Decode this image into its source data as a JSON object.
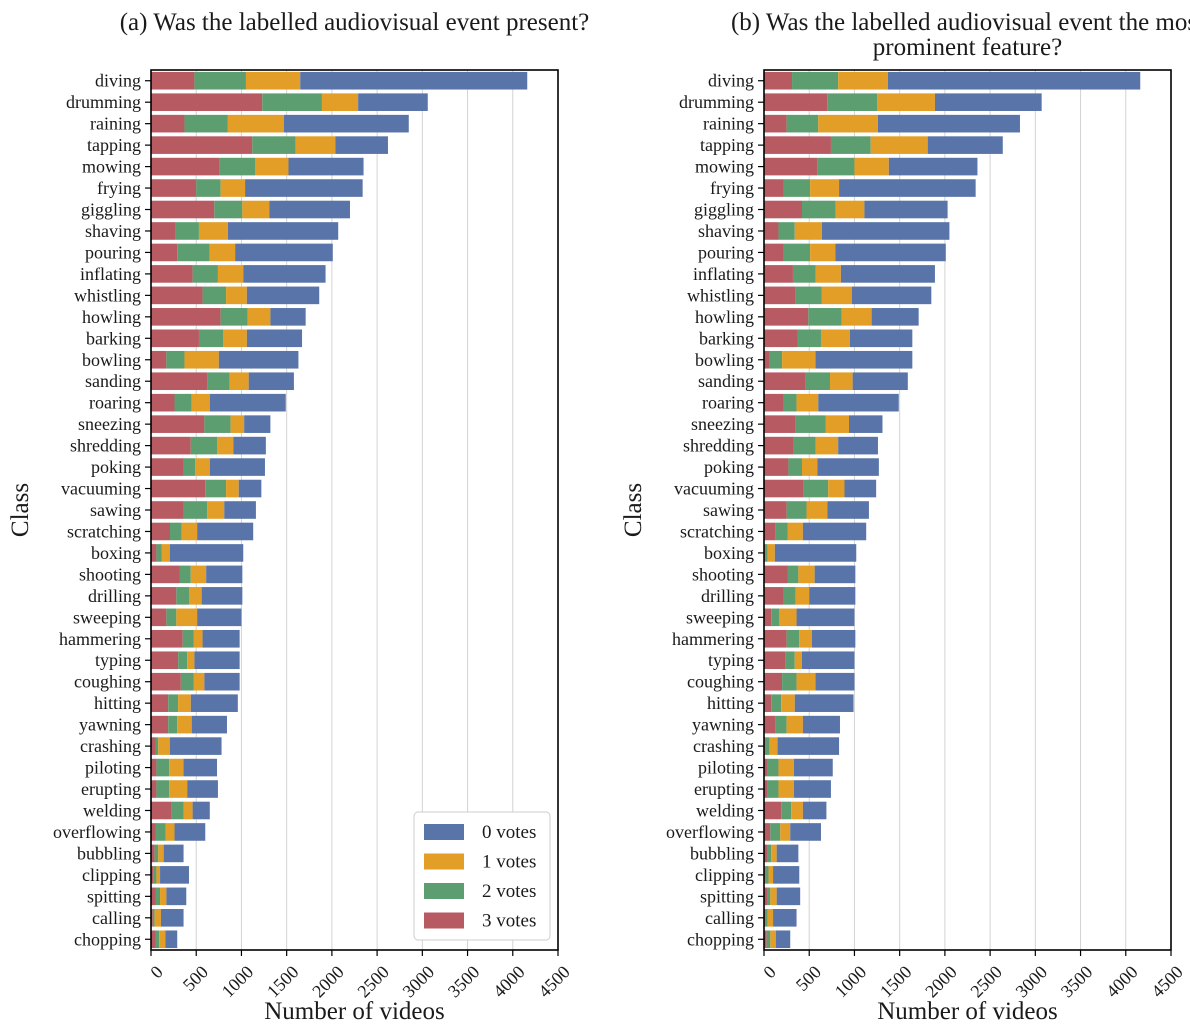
{
  "classes": [
    "diving",
    "drumming",
    "raining",
    "tapping",
    "mowing",
    "frying",
    "giggling",
    "shaving",
    "pouring",
    "inflating",
    "whistling",
    "howling",
    "barking",
    "bowling",
    "sanding",
    "roaring",
    "sneezing",
    "shredding",
    "poking",
    "vacuuming",
    "sawing",
    "scratching",
    "boxing",
    "shooting",
    "drilling",
    "sweeping",
    "hammering",
    "typing",
    "coughing",
    "hitting",
    "yawning",
    "crashing",
    "piloting",
    "erupting",
    "welding",
    "overflowing",
    "bubbling",
    "clipping",
    "spitting",
    "calling",
    "chopping"
  ],
  "x_ticks": [
    "0",
    "500",
    "1000",
    "1500",
    "2000",
    "2500",
    "3000",
    "3500",
    "4000",
    "4500"
  ],
  "legend": [
    {
      "label": "0 votes",
      "color": "#5874a8"
    },
    {
      "label": "1 votes",
      "color": "#e29e26"
    },
    {
      "label": "2 votes",
      "color": "#5d9e71"
    },
    {
      "label": "3 votes",
      "color": "#b85a62"
    }
  ],
  "chart_data": [
    {
      "type": "bar",
      "orientation": "horizontal",
      "stacked": true,
      "title": "(a) Was the labelled audiovisual event present?",
      "xlabel": "Number of videos",
      "ylabel": "Class",
      "xlim": [
        0,
        4500
      ],
      "grid": "vertical",
      "legend_position": "bottom-right",
      "series": [
        {
          "name": "3 votes",
          "color": "#b85a62",
          "values": [
            480,
            1230,
            370,
            1120,
            760,
            500,
            700,
            270,
            290,
            460,
            570,
            770,
            530,
            170,
            620,
            260,
            590,
            440,
            360,
            600,
            360,
            210,
            60,
            320,
            280,
            170,
            350,
            300,
            330,
            190,
            190,
            50,
            60,
            60,
            230,
            50,
            40,
            30,
            50,
            20,
            50
          ]
        },
        {
          "name": "2 votes",
          "color": "#5d9e71",
          "values": [
            570,
            660,
            480,
            480,
            390,
            270,
            310,
            260,
            360,
            280,
            260,
            300,
            270,
            200,
            250,
            190,
            290,
            290,
            130,
            230,
            260,
            130,
            60,
            120,
            140,
            110,
            120,
            100,
            140,
            110,
            100,
            30,
            140,
            140,
            130,
            110,
            40,
            30,
            50,
            20,
            40
          ]
        },
        {
          "name": "1 votes",
          "color": "#e29e26",
          "values": [
            600,
            400,
            620,
            440,
            370,
            270,
            300,
            320,
            280,
            280,
            230,
            250,
            260,
            380,
            210,
            200,
            150,
            180,
            160,
            140,
            190,
            170,
            90,
            170,
            140,
            230,
            100,
            80,
            120,
            140,
            160,
            130,
            160,
            200,
            100,
            100,
            60,
            40,
            70,
            70,
            70
          ]
        },
        {
          "name": "0 votes",
          "color": "#5874a8",
          "values": [
            2510,
            770,
            1380,
            580,
            830,
            1300,
            890,
            1220,
            1080,
            910,
            800,
            390,
            610,
            880,
            500,
            840,
            290,
            360,
            610,
            250,
            350,
            620,
            810,
            400,
            450,
            490,
            410,
            500,
            390,
            520,
            390,
            570,
            370,
            340,
            190,
            340,
            220,
            320,
            220,
            250,
            130
          ]
        }
      ]
    },
    {
      "type": "bar",
      "orientation": "horizontal",
      "stacked": true,
      "title": "(b) Was the labelled audiovisual event the most prominent feature?",
      "xlabel": "Number of videos",
      "ylabel": "Class",
      "xlim": [
        0,
        4500
      ],
      "grid": "vertical",
      "legend_position": "none",
      "series": [
        {
          "name": "3 votes",
          "color": "#b85a62",
          "values": [
            310,
            700,
            250,
            740,
            590,
            220,
            420,
            160,
            210,
            320,
            350,
            490,
            370,
            60,
            460,
            210,
            350,
            330,
            270,
            440,
            250,
            130,
            20,
            260,
            210,
            80,
            250,
            240,
            200,
            80,
            130,
            20,
            40,
            40,
            190,
            70,
            40,
            20,
            40,
            20,
            30
          ]
        },
        {
          "name": "2 votes",
          "color": "#5d9e71",
          "values": [
            510,
            550,
            350,
            440,
            410,
            290,
            370,
            180,
            300,
            250,
            290,
            370,
            260,
            140,
            270,
            150,
            330,
            240,
            150,
            270,
            220,
            130,
            20,
            120,
            140,
            90,
            140,
            100,
            160,
            110,
            120,
            40,
            120,
            120,
            110,
            110,
            40,
            30,
            30,
            20,
            40
          ]
        },
        {
          "name": "1 votes",
          "color": "#e29e26",
          "values": [
            550,
            640,
            660,
            630,
            380,
            320,
            320,
            300,
            280,
            280,
            330,
            330,
            320,
            370,
            250,
            240,
            260,
            250,
            170,
            180,
            230,
            170,
            80,
            180,
            150,
            190,
            140,
            80,
            210,
            150,
            180,
            90,
            170,
            170,
            130,
            110,
            60,
            50,
            70,
            60,
            60
          ]
        },
        {
          "name": "0 votes",
          "color": "#5874a8",
          "values": [
            2790,
            1180,
            1570,
            830,
            980,
            1510,
            920,
            1410,
            1220,
            1040,
            880,
            520,
            690,
            1070,
            610,
            890,
            370,
            440,
            680,
            350,
            460,
            700,
            900,
            450,
            510,
            640,
            480,
            580,
            430,
            650,
            410,
            680,
            430,
            410,
            260,
            340,
            240,
            290,
            260,
            260,
            160
          ]
        }
      ]
    }
  ]
}
